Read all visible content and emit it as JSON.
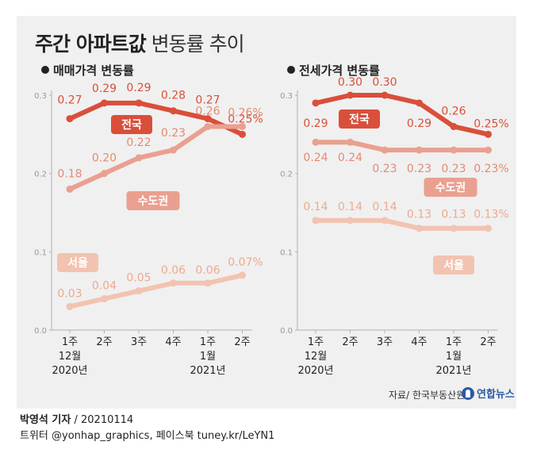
{
  "title": {
    "bold": "주간 아파트값",
    "light": "변동률 추이"
  },
  "source": "자료/ 한국부동산원",
  "logo": "연합뉴스",
  "credit": {
    "name": "박영석 기자",
    "separator": "/",
    "date": "20210114",
    "line2": "트위터 @yonhap_graphics, 페이스북 tuney.kr/LeYN1"
  },
  "colors": {
    "nationwide": "#d94f3a",
    "capital": "#eaa090",
    "seoul": "#f2c3b0"
  },
  "chart_data": [
    {
      "type": "line",
      "title": "매매가격 변동률",
      "x_ticks": [
        {
          "line1": "1주",
          "line2": "12월",
          "line3": "2020년"
        },
        {
          "line1": "2주",
          "line2": "",
          "line3": ""
        },
        {
          "line1": "3주",
          "line2": "",
          "line3": ""
        },
        {
          "line1": "4주",
          "line2": "",
          "line3": ""
        },
        {
          "line1": "1주",
          "line2": "1월",
          "line3": "2021년"
        },
        {
          "line1": "2주",
          "line2": "",
          "line3": ""
        }
      ],
      "y_ticks": [
        "0.0",
        "0.1",
        "0.2",
        "0.3"
      ],
      "ylim": [
        0,
        0.3
      ],
      "series": [
        {
          "name": "전국",
          "color_key": "nationwide",
          "values": [
            0.27,
            0.29,
            0.29,
            0.28,
            0.27,
            0.25
          ],
          "labels": [
            "0.27",
            "0.29",
            "0.29",
            "0.28",
            "0.27",
            "0.25%"
          ]
        },
        {
          "name": "수도권",
          "color_key": "capital",
          "values": [
            0.18,
            0.2,
            0.22,
            0.23,
            0.26,
            0.26
          ],
          "labels": [
            "0.18",
            "0.20",
            "0.22",
            "0.23",
            "0.26",
            "0.26%"
          ]
        },
        {
          "name": "서울",
          "color_key": "seoul",
          "values": [
            0.03,
            0.04,
            0.05,
            0.06,
            0.06,
            0.07
          ],
          "labels": [
            "0.03",
            "0.04",
            "0.05",
            "0.06",
            "0.06",
            "0.07%"
          ]
        }
      ]
    },
    {
      "type": "line",
      "title": "전세가격 변동률",
      "x_ticks": [
        {
          "line1": "1주",
          "line2": "12월",
          "line3": "2020년"
        },
        {
          "line1": "2주",
          "line2": "",
          "line3": ""
        },
        {
          "line1": "3주",
          "line2": "",
          "line3": ""
        },
        {
          "line1": "4주",
          "line2": "",
          "line3": ""
        },
        {
          "line1": "1주",
          "line2": "1월",
          "line3": "2021년"
        },
        {
          "line1": "2주",
          "line2": "",
          "line3": ""
        }
      ],
      "y_ticks": [
        "0.0",
        "0.1",
        "0.2",
        "0.3"
      ],
      "ylim": [
        0,
        0.3
      ],
      "series": [
        {
          "name": "전국",
          "color_key": "nationwide",
          "values": [
            0.29,
            0.3,
            0.3,
            0.29,
            0.26,
            0.25
          ],
          "labels": [
            "0.29",
            "0.30",
            "0.30",
            "0.29",
            "0.26",
            "0.25%"
          ]
        },
        {
          "name": "수도권",
          "color_key": "capital",
          "values": [
            0.24,
            0.24,
            0.23,
            0.23,
            0.23,
            0.23
          ],
          "labels": [
            "0.24",
            "0.24",
            "0.23",
            "0.23",
            "0.23",
            "0.23%"
          ]
        },
        {
          "name": "서울",
          "color_key": "seoul",
          "values": [
            0.14,
            0.14,
            0.14,
            0.13,
            0.13,
            0.13
          ],
          "labels": [
            "0.14",
            "0.14",
            "0.14",
            "0.13",
            "0.13",
            "0.13%"
          ]
        }
      ]
    }
  ]
}
